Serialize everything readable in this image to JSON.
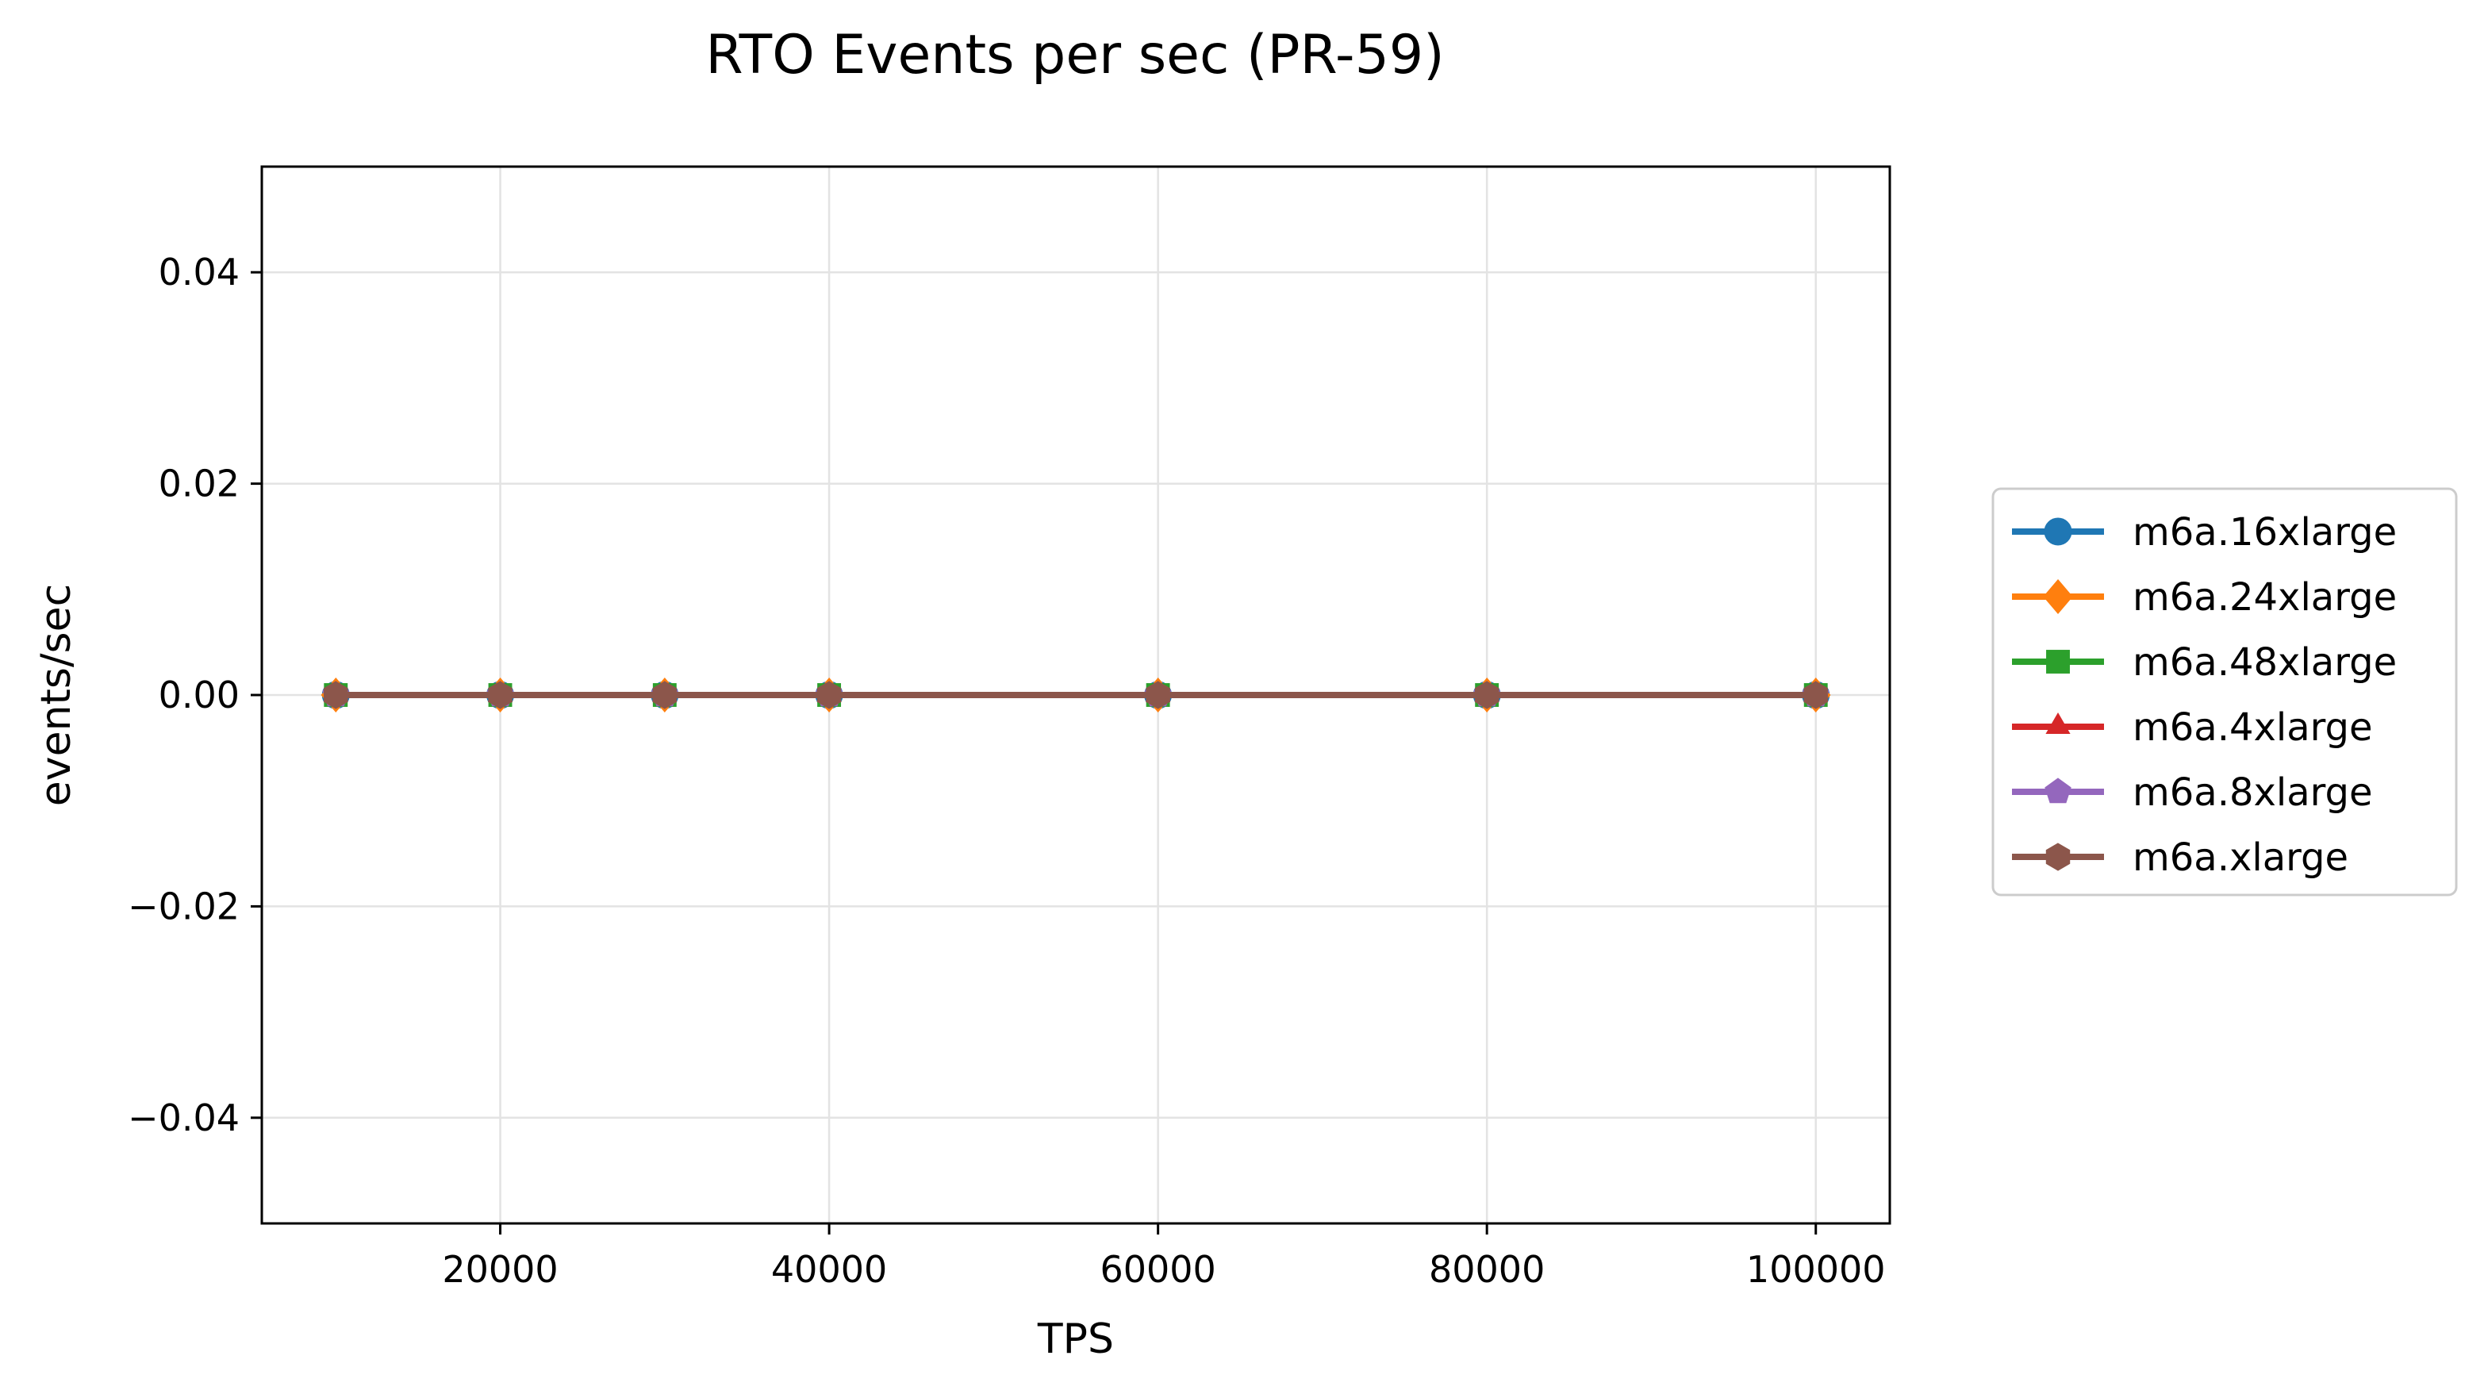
{
  "chart_data": {
    "type": "line",
    "title": "RTO Events per sec (PR-59)",
    "xlabel": "TPS",
    "ylabel": "events/sec",
    "x": [
      10000,
      20000,
      30000,
      40000,
      60000,
      80000,
      100000
    ],
    "xlim": [
      5500,
      104500
    ],
    "ylim": [
      -0.05,
      0.05
    ],
    "xticks": [
      20000,
      40000,
      60000,
      80000,
      100000
    ],
    "xtick_labels": [
      "20000",
      "40000",
      "60000",
      "80000",
      "100000"
    ],
    "yticks": [
      -0.04,
      -0.02,
      0.0,
      0.02,
      0.04
    ],
    "ytick_labels": [
      "−0.04",
      "−0.02",
      "0.00",
      "0.02",
      "0.04"
    ],
    "grid": true,
    "legend_position": "outside-right",
    "series": [
      {
        "name": "m6a.16xlarge",
        "color": "#1f77b4",
        "marker": "circle",
        "values": [
          0,
          0,
          0,
          0,
          0,
          0,
          0
        ]
      },
      {
        "name": "m6a.24xlarge",
        "color": "#ff7f0e",
        "marker": "diamond",
        "values": [
          0,
          0,
          0,
          0,
          0,
          0,
          0
        ]
      },
      {
        "name": "m6a.48xlarge",
        "color": "#2ca02c",
        "marker": "square",
        "values": [
          0,
          0,
          0,
          0,
          0,
          0,
          0
        ]
      },
      {
        "name": "m6a.4xlarge",
        "color": "#d62728",
        "marker": "triangle",
        "values": [
          0,
          0,
          0,
          0,
          0,
          0,
          0
        ]
      },
      {
        "name": "m6a.8xlarge",
        "color": "#9467bd",
        "marker": "pentagon",
        "values": [
          0,
          0,
          0,
          0,
          0,
          0,
          0
        ]
      },
      {
        "name": "m6a.xlarge",
        "color": "#8c564b",
        "marker": "hexagon",
        "values": [
          0,
          0,
          0,
          0,
          0,
          0,
          0
        ]
      }
    ]
  }
}
